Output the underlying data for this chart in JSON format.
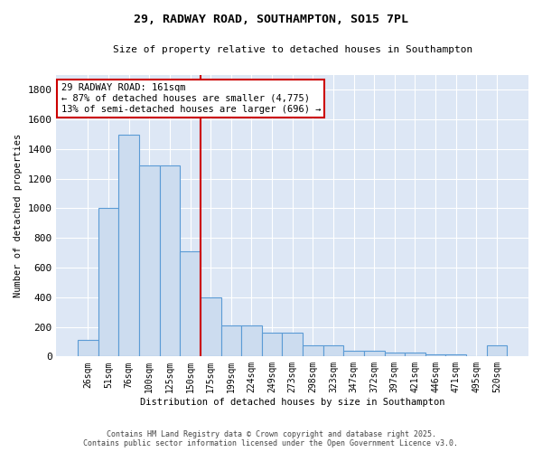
{
  "title1": "29, RADWAY ROAD, SOUTHAMPTON, SO15 7PL",
  "title2": "Size of property relative to detached houses in Southampton",
  "xlabel": "Distribution of detached houses by size in Southampton",
  "ylabel": "Number of detached properties",
  "categories": [
    "26sqm",
    "51sqm",
    "76sqm",
    "100sqm",
    "125sqm",
    "150sqm",
    "175sqm",
    "199sqm",
    "224sqm",
    "249sqm",
    "273sqm",
    "298sqm",
    "323sqm",
    "347sqm",
    "372sqm",
    "397sqm",
    "421sqm",
    "446sqm",
    "471sqm",
    "495sqm",
    "520sqm"
  ],
  "values": [
    110,
    1000,
    1500,
    1290,
    1290,
    710,
    400,
    210,
    210,
    160,
    160,
    75,
    75,
    40,
    40,
    25,
    25,
    15,
    15,
    0,
    75
  ],
  "bar_color": "#ccdcef",
  "bar_edge_color": "#5b9bd5",
  "vline_x": 6,
  "vline_color": "#cc0000",
  "annotation_text": "29 RADWAY ROAD: 161sqm\n← 87% of detached houses are smaller (4,775)\n13% of semi-detached houses are larger (696) →",
  "annotation_box_color": "#ffffff",
  "annotation_box_edge": "#cc0000",
  "ylim": [
    0,
    1900
  ],
  "yticks": [
    0,
    200,
    400,
    600,
    800,
    1000,
    1200,
    1400,
    1600,
    1800
  ],
  "bg_color": "#dde7f5",
  "fig_color": "#ffffff",
  "footer1": "Contains HM Land Registry data © Crown copyright and database right 2025.",
  "footer2": "Contains public sector information licensed under the Open Government Licence v3.0."
}
